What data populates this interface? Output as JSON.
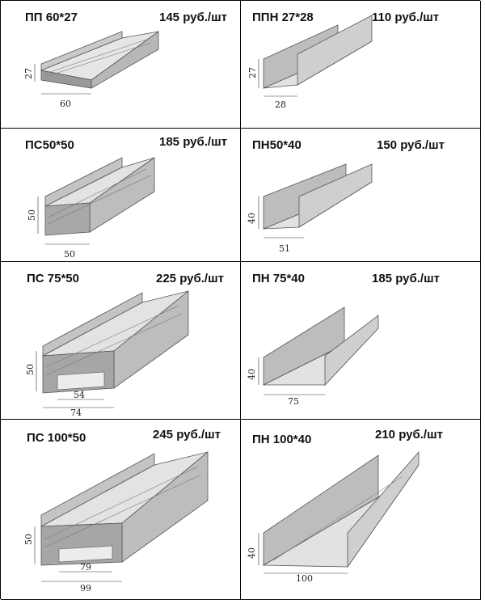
{
  "products": [
    {
      "name": "ПП 60*27",
      "price": "145 руб./шт",
      "dims": {
        "height": "27",
        "width": "60"
      }
    },
    {
      "name": "ППН 27*28",
      "price": "110 руб./шт",
      "dims": {
        "height": "27",
        "width": "28"
      }
    },
    {
      "name": "ПС50*50",
      "price": "185 руб./шт",
      "dims": {
        "height": "50",
        "width": "50"
      }
    },
    {
      "name": "ПН50*40",
      "price": "150 руб./шт",
      "dims": {
        "height": "40",
        "width": "51"
      }
    },
    {
      "name": "ПС 75*50",
      "price": "225 руб./шт",
      "dims": {
        "height": "50",
        "inner": "54",
        "width": "74"
      }
    },
    {
      "name": "ПН 75*40",
      "price": "185 руб./шт",
      "dims": {
        "height": "40",
        "width": "75"
      }
    },
    {
      "name": "ПС 100*50",
      "price": "245 руб./шт",
      "dims": {
        "height": "50",
        "inner": "79",
        "width": "99"
      }
    },
    {
      "name": "ПН 100*40",
      "price": "210 руб./шт",
      "dims": {
        "height": "40",
        "width": "100"
      }
    }
  ]
}
